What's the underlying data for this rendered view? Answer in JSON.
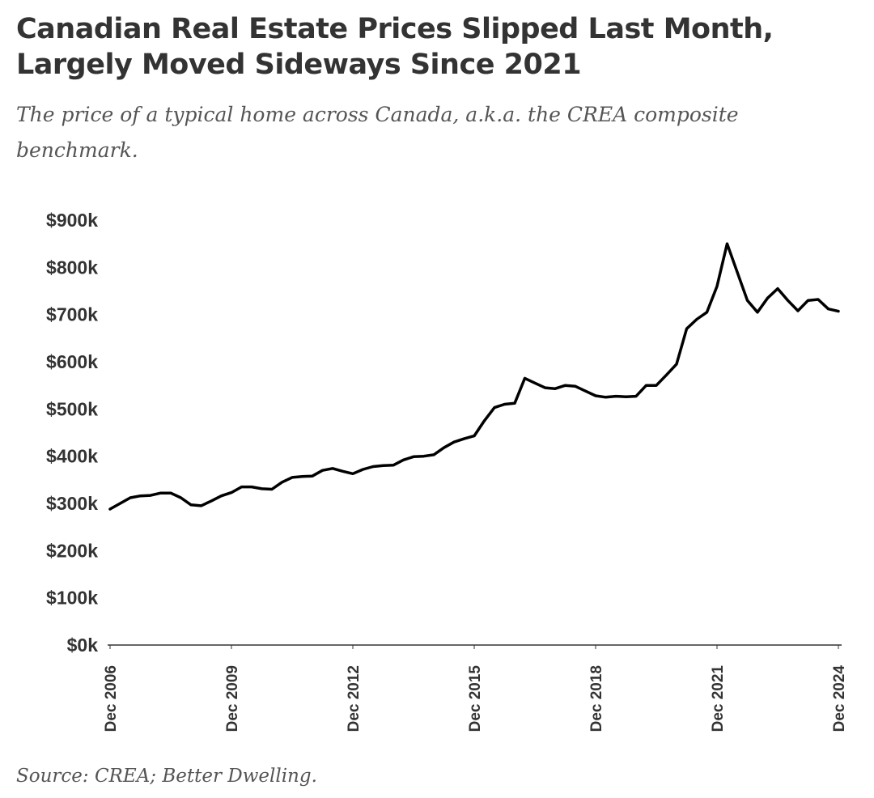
{
  "chart_data": {
    "type": "line",
    "title": "Canadian Real Estate Prices Slipped Last Month, Largely Moved Sideways Since 2021",
    "subtitle": "The price of a typical home across Canada, a.k.a. the CREA composite benchmark.",
    "source": "Source: CREA; Better Dwelling.",
    "x": [
      "2006-12",
      "2007-03",
      "2007-06",
      "2007-09",
      "2007-12",
      "2008-03",
      "2008-06",
      "2008-09",
      "2008-12",
      "2009-03",
      "2009-06",
      "2009-09",
      "2009-12",
      "2010-03",
      "2010-06",
      "2010-09",
      "2010-12",
      "2011-03",
      "2011-06",
      "2011-09",
      "2011-12",
      "2012-03",
      "2012-06",
      "2012-09",
      "2012-12",
      "2013-03",
      "2013-06",
      "2013-09",
      "2013-12",
      "2014-03",
      "2014-06",
      "2014-09",
      "2014-12",
      "2015-03",
      "2015-06",
      "2015-09",
      "2015-12",
      "2016-03",
      "2016-06",
      "2016-09",
      "2016-12",
      "2017-03",
      "2017-06",
      "2017-09",
      "2017-12",
      "2018-03",
      "2018-06",
      "2018-09",
      "2018-12",
      "2019-03",
      "2019-06",
      "2019-09",
      "2019-12",
      "2020-03",
      "2020-06",
      "2020-09",
      "2020-12",
      "2021-03",
      "2021-06",
      "2021-09",
      "2021-12",
      "2022-03",
      "2022-06",
      "2022-09",
      "2022-12",
      "2023-03",
      "2023-06",
      "2023-09",
      "2023-12",
      "2024-03",
      "2024-06",
      "2024-09",
      "2024-12"
    ],
    "values": [
      288,
      300,
      312,
      316,
      317,
      322,
      322,
      312,
      297,
      295,
      305,
      316,
      323,
      335,
      335,
      331,
      330,
      345,
      355,
      357,
      358,
      370,
      374,
      368,
      363,
      372,
      378,
      380,
      381,
      392,
      399,
      400,
      403,
      418,
      430,
      437,
      443,
      475,
      503,
      510,
      512,
      565,
      555,
      545,
      543,
      550,
      548,
      538,
      528,
      525,
      527,
      526,
      527,
      550,
      550,
      572,
      595,
      670,
      690,
      705,
      760,
      850,
      790,
      730,
      705,
      735,
      755,
      730,
      708,
      730,
      732,
      712,
      707
    ],
    "color": "#000000",
    "xlim": [
      "2006-12",
      "2024-12"
    ],
    "xticks": [
      {
        "value": "2006-12",
        "label": "Dec 2006"
      },
      {
        "value": "2009-12",
        "label": "Dec 2009"
      },
      {
        "value": "2012-12",
        "label": "Dec 2012"
      },
      {
        "value": "2015-12",
        "label": "Dec 2015"
      },
      {
        "value": "2018-12",
        "label": "Dec 2018"
      },
      {
        "value": "2021-12",
        "label": "Dec 2021"
      },
      {
        "value": "2024-12",
        "label": "Dec 2024"
      }
    ],
    "ylim": [
      0,
      900
    ],
    "yticks": [
      {
        "value": 0,
        "label": "$0k"
      },
      {
        "value": 100,
        "label": "$100k"
      },
      {
        "value": 200,
        "label": "$200k"
      },
      {
        "value": 300,
        "label": "$300k"
      },
      {
        "value": 400,
        "label": "$400k"
      },
      {
        "value": 500,
        "label": "$500k"
      },
      {
        "value": 600,
        "label": "$600k"
      },
      {
        "value": 700,
        "label": "$700k"
      },
      {
        "value": 800,
        "label": "$800k"
      },
      {
        "value": 900,
        "label": "$900k"
      }
    ],
    "grid": false
  }
}
